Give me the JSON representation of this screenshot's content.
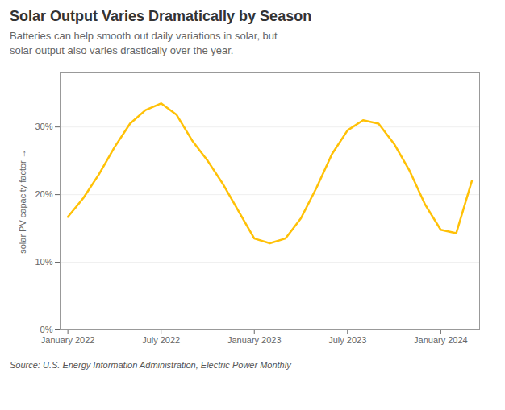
{
  "chart_data": {
    "type": "line",
    "title": "Solar Output Varies Dramatically by Season",
    "subtitle": "Batteries can help smooth out daily variations in solar, but\nsolar output also varies drastically over the year.",
    "ylabel": "solar PV capacity factor",
    "source": "Source: U.S. Energy Information Administration, Electric Power Monthly",
    "color": "#FFC107",
    "x": [
      0,
      1,
      2,
      3,
      4,
      5,
      6,
      7,
      8,
      9,
      10,
      11,
      12,
      13,
      14,
      15,
      16,
      17,
      18,
      19,
      20,
      21,
      22,
      23,
      24,
      25,
      26
    ],
    "values": [
      0.167,
      0.195,
      0.23,
      0.27,
      0.305,
      0.325,
      0.335,
      0.318,
      0.28,
      0.25,
      0.215,
      0.175,
      0.135,
      0.128,
      0.135,
      0.165,
      0.21,
      0.26,
      0.295,
      0.31,
      0.305,
      0.275,
      0.235,
      0.185,
      0.148,
      0.143,
      0.22
    ],
    "xlim": [
      -0.5,
      26.5
    ],
    "xticks": [
      {
        "value": 0,
        "label": "January 2022"
      },
      {
        "value": 6,
        "label": "July 2022"
      },
      {
        "value": 12,
        "label": "January 2023"
      },
      {
        "value": 18,
        "label": "July 2023"
      },
      {
        "value": 24,
        "label": "January 2024"
      }
    ],
    "ylim": [
      0,
      0.38
    ],
    "yticks": [
      {
        "value": 0,
        "label": "0%"
      },
      {
        "value": 0.1,
        "label": "10%"
      },
      {
        "value": 0.2,
        "label": "20%"
      },
      {
        "value": 0.3,
        "label": "30%"
      }
    ],
    "grid": true
  }
}
